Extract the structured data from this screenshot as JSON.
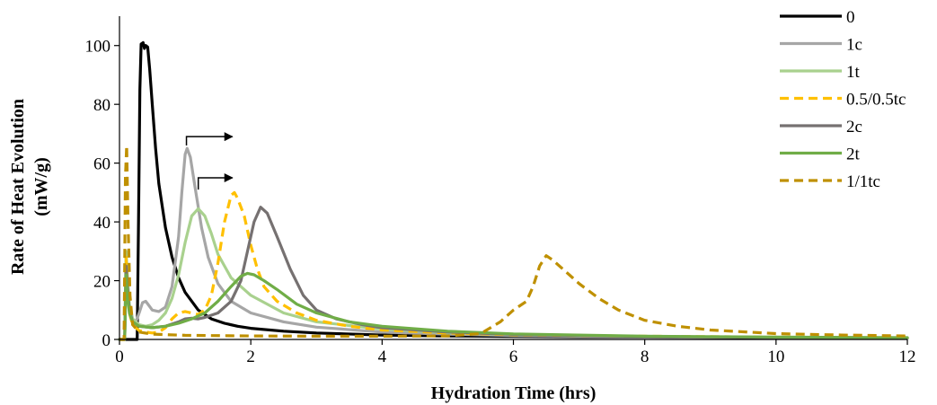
{
  "chart_data": {
    "type": "line",
    "xlabel": "Hydration Time (hrs)",
    "ylabel": [
      "Rate of Heat Evolution",
      "(mW/g)"
    ],
    "xlim": [
      0,
      12
    ],
    "ylim": [
      0,
      110
    ],
    "x_ticks": [
      0,
      2,
      4,
      6,
      8,
      10,
      12
    ],
    "y_ticks": [
      0,
      20,
      40,
      60,
      80,
      100
    ],
    "grid": false,
    "legend_position": "top-right",
    "series": [
      {
        "name": "0",
        "color": "#000000",
        "dash": "solid",
        "points": [
          [
            0.0,
            0
          ],
          [
            0.27,
            0
          ],
          [
            0.29,
            40
          ],
          [
            0.31,
            85
          ],
          [
            0.33,
            100.5
          ],
          [
            0.36,
            101
          ],
          [
            0.38,
            99
          ],
          [
            0.4,
            100
          ],
          [
            0.43,
            99.5
          ],
          [
            0.46,
            92
          ],
          [
            0.5,
            80
          ],
          [
            0.55,
            65
          ],
          [
            0.6,
            53
          ],
          [
            0.7,
            38
          ],
          [
            0.8,
            28
          ],
          [
            0.9,
            21
          ],
          [
            1.0,
            16
          ],
          [
            1.2,
            10
          ],
          [
            1.4,
            7
          ],
          [
            1.6,
            5.5
          ],
          [
            1.8,
            4.5
          ],
          [
            2.0,
            3.8
          ],
          [
            2.5,
            2.8
          ],
          [
            3.0,
            2.2
          ],
          [
            4.0,
            1.5
          ],
          [
            5.0,
            1.2
          ],
          [
            6.0,
            1.0
          ],
          [
            8.0,
            0.8
          ],
          [
            10.0,
            0.6
          ],
          [
            12.0,
            0.5
          ]
        ]
      },
      {
        "name": "1c",
        "color": "#a6a6a6",
        "dash": "solid",
        "points": [
          [
            0.0,
            0
          ],
          [
            0.08,
            0
          ],
          [
            0.1,
            27
          ],
          [
            0.12,
            20
          ],
          [
            0.15,
            11
          ],
          [
            0.2,
            7
          ],
          [
            0.25,
            6
          ],
          [
            0.3,
            9
          ],
          [
            0.35,
            12.5
          ],
          [
            0.4,
            13
          ],
          [
            0.45,
            11.5
          ],
          [
            0.5,
            10
          ],
          [
            0.6,
            9.5
          ],
          [
            0.7,
            11
          ],
          [
            0.8,
            18
          ],
          [
            0.9,
            35
          ],
          [
            0.95,
            50
          ],
          [
            1.0,
            63
          ],
          [
            1.03,
            65
          ],
          [
            1.08,
            62
          ],
          [
            1.15,
            52
          ],
          [
            1.25,
            38
          ],
          [
            1.35,
            28
          ],
          [
            1.5,
            19
          ],
          [
            1.7,
            13
          ],
          [
            2.0,
            9
          ],
          [
            2.5,
            6
          ],
          [
            3.0,
            4.2
          ],
          [
            4.0,
            2.5
          ],
          [
            5.0,
            1.8
          ],
          [
            6.0,
            1.3
          ],
          [
            8.0,
            0.9
          ],
          [
            10.0,
            0.7
          ],
          [
            12.0,
            0.5
          ]
        ]
      },
      {
        "name": "1t",
        "color": "#a9d18e",
        "dash": "solid",
        "points": [
          [
            0.0,
            0
          ],
          [
            0.08,
            0
          ],
          [
            0.1,
            30
          ],
          [
            0.12,
            22
          ],
          [
            0.15,
            12
          ],
          [
            0.2,
            7
          ],
          [
            0.3,
            5
          ],
          [
            0.4,
            4.5
          ],
          [
            0.5,
            5
          ],
          [
            0.6,
            6.5
          ],
          [
            0.7,
            9
          ],
          [
            0.8,
            14
          ],
          [
            0.9,
            22
          ],
          [
            1.0,
            33
          ],
          [
            1.1,
            42
          ],
          [
            1.2,
            44.5
          ],
          [
            1.3,
            42
          ],
          [
            1.4,
            36
          ],
          [
            1.5,
            29
          ],
          [
            1.7,
            21
          ],
          [
            2.0,
            15
          ],
          [
            2.5,
            9
          ],
          [
            3.0,
            6
          ],
          [
            4.0,
            3.5
          ],
          [
            5.0,
            2.3
          ],
          [
            6.0,
            1.6
          ],
          [
            8.0,
            1.0
          ],
          [
            10.0,
            0.7
          ],
          [
            12.0,
            0.5
          ]
        ]
      },
      {
        "name": "0.5/0.5tc",
        "color": "#ffc000",
        "dash": "dashed",
        "points": [
          [
            0.0,
            0
          ],
          [
            0.08,
            0
          ],
          [
            0.1,
            28
          ],
          [
            0.12,
            18
          ],
          [
            0.15,
            9
          ],
          [
            0.2,
            5
          ],
          [
            0.3,
            3
          ],
          [
            0.4,
            2.5
          ],
          [
            0.5,
            2.2
          ],
          [
            0.6,
            2.5
          ],
          [
            0.7,
            4
          ],
          [
            0.8,
            7
          ],
          [
            0.9,
            9
          ],
          [
            1.0,
            9.5
          ],
          [
            1.1,
            9
          ],
          [
            1.2,
            8.5
          ],
          [
            1.3,
            10
          ],
          [
            1.4,
            15
          ],
          [
            1.5,
            26
          ],
          [
            1.6,
            40
          ],
          [
            1.7,
            49
          ],
          [
            1.75,
            50
          ],
          [
            1.8,
            48
          ],
          [
            1.9,
            42
          ],
          [
            2.0,
            32
          ],
          [
            2.1,
            24
          ],
          [
            2.2,
            18
          ],
          [
            2.4,
            13
          ],
          [
            2.7,
            9
          ],
          [
            3.0,
            6.5
          ],
          [
            3.5,
            4.5
          ],
          [
            4.0,
            3.2
          ],
          [
            5.0,
            2.2
          ],
          [
            6.0,
            1.6
          ],
          [
            8.0,
            1.1
          ],
          [
            10.0,
            0.8
          ],
          [
            12.0,
            0.6
          ]
        ]
      },
      {
        "name": "2c",
        "color": "#767171",
        "dash": "solid",
        "points": [
          [
            0.0,
            0
          ],
          [
            0.08,
            0
          ],
          [
            0.1,
            25
          ],
          [
            0.12,
            18
          ],
          [
            0.15,
            10
          ],
          [
            0.2,
            6
          ],
          [
            0.3,
            4.5
          ],
          [
            0.5,
            4
          ],
          [
            0.7,
            4.5
          ],
          [
            0.9,
            6
          ],
          [
            1.0,
            7
          ],
          [
            1.1,
            7.2
          ],
          [
            1.2,
            7
          ],
          [
            1.3,
            7.5
          ],
          [
            1.5,
            9
          ],
          [
            1.7,
            13
          ],
          [
            1.85,
            20
          ],
          [
            1.95,
            30
          ],
          [
            2.05,
            40
          ],
          [
            2.15,
            45
          ],
          [
            2.25,
            43
          ],
          [
            2.4,
            35
          ],
          [
            2.6,
            24
          ],
          [
            2.8,
            15
          ],
          [
            3.0,
            10
          ],
          [
            3.3,
            7
          ],
          [
            3.7,
            5
          ],
          [
            4.0,
            4
          ],
          [
            5.0,
            2.5
          ],
          [
            6.0,
            1.7
          ],
          [
            8.0,
            1.0
          ],
          [
            10.0,
            0.7
          ],
          [
            12.0,
            0.5
          ]
        ]
      },
      {
        "name": "2t",
        "color": "#70ad47",
        "dash": "solid",
        "points": [
          [
            0.0,
            0
          ],
          [
            0.08,
            0
          ],
          [
            0.1,
            22
          ],
          [
            0.12,
            15
          ],
          [
            0.15,
            9
          ],
          [
            0.2,
            6
          ],
          [
            0.3,
            4.5
          ],
          [
            0.5,
            4
          ],
          [
            0.7,
            4.5
          ],
          [
            0.9,
            5.5
          ],
          [
            1.1,
            7
          ],
          [
            1.3,
            9
          ],
          [
            1.5,
            13
          ],
          [
            1.7,
            18
          ],
          [
            1.85,
            21.5
          ],
          [
            1.95,
            22.5
          ],
          [
            2.05,
            22
          ],
          [
            2.2,
            20
          ],
          [
            2.4,
            17
          ],
          [
            2.7,
            12
          ],
          [
            3.0,
            9
          ],
          [
            3.5,
            6
          ],
          [
            4.0,
            4.5
          ],
          [
            5.0,
            2.8
          ],
          [
            6.0,
            1.9
          ],
          [
            8.0,
            1.1
          ],
          [
            10.0,
            0.8
          ],
          [
            12.0,
            0.6
          ]
        ]
      },
      {
        "name": "1/1tc",
        "color": "#bf9000",
        "dash": "dashed",
        "points": [
          [
            0.0,
            0
          ],
          [
            0.07,
            0
          ],
          [
            0.09,
            55
          ],
          [
            0.11,
            66
          ],
          [
            0.13,
            40
          ],
          [
            0.16,
            15
          ],
          [
            0.2,
            5
          ],
          [
            0.3,
            2.5
          ],
          [
            0.5,
            1.8
          ],
          [
            1.0,
            1.4
          ],
          [
            2.0,
            1.2
          ],
          [
            3.0,
            1.1
          ],
          [
            4.0,
            1.1
          ],
          [
            5.0,
            1.2
          ],
          [
            5.5,
            2
          ],
          [
            5.8,
            6
          ],
          [
            6.0,
            10
          ],
          [
            6.2,
            13
          ],
          [
            6.3,
            18
          ],
          [
            6.4,
            25
          ],
          [
            6.5,
            28.5
          ],
          [
            6.6,
            27
          ],
          [
            6.8,
            23
          ],
          [
            7.0,
            19
          ],
          [
            7.3,
            14
          ],
          [
            7.6,
            10
          ],
          [
            8.0,
            6.5
          ],
          [
            8.5,
            4.5
          ],
          [
            9.0,
            3.2
          ],
          [
            10.0,
            2
          ],
          [
            11.0,
            1.5
          ],
          [
            12.0,
            1.2
          ]
        ]
      }
    ],
    "annotations": [
      {
        "type": "bracket-arrow",
        "from_x": 1.02,
        "base_y": 66,
        "top_y": 69,
        "to_x": 1.72
      },
      {
        "type": "bracket-arrow",
        "from_x": 1.2,
        "base_y": 51,
        "top_y": 55,
        "to_x": 1.72
      }
    ]
  }
}
